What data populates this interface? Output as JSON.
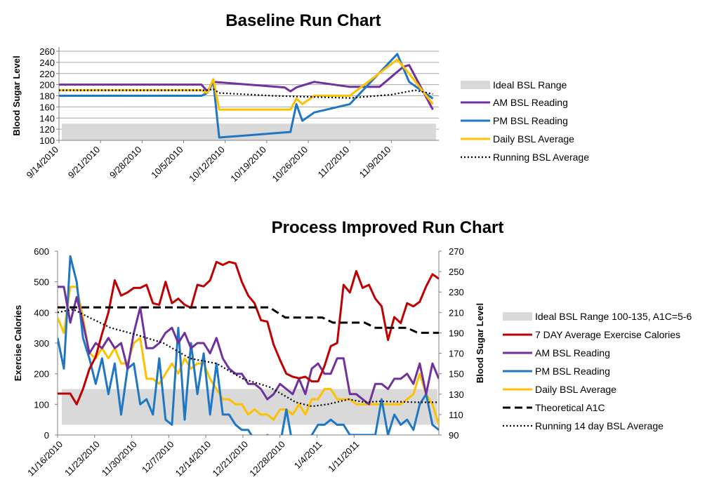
{
  "colors": {
    "ideal": "#d9d9d9",
    "am": "#7030a0",
    "pm": "#1f77c4",
    "daily": "#ffc000",
    "exercise": "#c00000",
    "running": "#000000",
    "a1c": "#000000",
    "grid": "#a6a6a6"
  },
  "chart_data": [
    {
      "type": "line",
      "title": "Baseline Run Chart",
      "ylabel": "Blood Sugar Level",
      "ylim": [
        100,
        260
      ],
      "yticks": [
        100,
        120,
        140,
        160,
        180,
        200,
        220,
        240,
        260
      ],
      "xlim": [
        "9/14/2010",
        "11/17/2010"
      ],
      "xticks": [
        "9/14/2010",
        "9/21/2010",
        "9/28/2010",
        "10/5/2010",
        "10/12/2010",
        "10/19/2010",
        "10/26/2010",
        "11/2/2010",
        "11/9/2010"
      ],
      "ideal_range": [
        100,
        130
      ],
      "legend": [
        "Ideal BSL Range",
        "AM BSL Reading",
        "PM BSL Reading",
        "Daily BSL Average",
        "Running BSL Average"
      ],
      "series": [
        {
          "name": "AM BSL Reading",
          "points": [
            [
              "9/14/2010",
              200
            ],
            [
              "10/8/2010",
              200
            ],
            [
              "10/9/2010",
              188
            ],
            [
              "10/10/2010",
              205
            ],
            [
              "10/22/2010",
              195
            ],
            [
              "10/23/2010",
              188
            ],
            [
              "10/24/2010",
              195
            ],
            [
              "10/27/2010",
              205
            ],
            [
              "11/2/2010",
              196
            ],
            [
              "11/7/2010",
              196
            ],
            [
              "11/11/2010",
              232
            ],
            [
              "11/12/2010",
              235
            ],
            [
              "11/16/2010",
              155
            ]
          ]
        },
        {
          "name": "PM BSL Reading",
          "points": [
            [
              "9/14/2010",
              180
            ],
            [
              "10/8/2010",
              180
            ],
            [
              "10/9/2010",
              185
            ],
            [
              "10/10/2010",
              205
            ],
            [
              "10/11/2010",
              105
            ],
            [
              "10/23/2010",
              115
            ],
            [
              "10/24/2010",
              165
            ],
            [
              "10/25/2010",
              135
            ],
            [
              "10/27/2010",
              150
            ],
            [
              "11/2/2010",
              165
            ],
            [
              "11/10/2010",
              255
            ],
            [
              "11/12/2010",
              205
            ],
            [
              "11/16/2010",
              175
            ]
          ]
        },
        {
          "name": "Daily BSL Average",
          "points": [
            [
              "9/14/2010",
              190
            ],
            [
              "10/8/2010",
              190
            ],
            [
              "10/9/2010",
              185
            ],
            [
              "10/10/2010",
              210
            ],
            [
              "10/11/2010",
              155
            ],
            [
              "10/23/2010",
              155
            ],
            [
              "10/24/2010",
              175
            ],
            [
              "10/25/2010",
              165
            ],
            [
              "10/27/2010",
              180
            ],
            [
              "11/2/2010",
              180
            ],
            [
              "11/10/2010",
              245
            ],
            [
              "11/12/2010",
              220
            ],
            [
              "11/16/2010",
              165
            ]
          ]
        },
        {
          "name": "Running BSL Average",
          "points": [
            [
              "9/14/2010",
              190
            ],
            [
              "10/9/2010",
              190
            ],
            [
              "10/10/2010",
              192
            ],
            [
              "10/11/2010",
              185
            ],
            [
              "10/20/2010",
              180
            ],
            [
              "11/2/2010",
              176
            ],
            [
              "11/9/2010",
              182
            ],
            [
              "11/13/2010",
              190
            ],
            [
              "11/16/2010",
              183
            ]
          ]
        }
      ]
    },
    {
      "type": "line",
      "title": "Process Improved Run Chart",
      "ylabel_left": "Exercise Calories",
      "ylabel_right": "Blood Sugar Level",
      "ylim_left": [
        0,
        600
      ],
      "yticks_left": [
        0,
        100,
        200,
        300,
        400,
        500,
        600
      ],
      "ylim_right": [
        90,
        270
      ],
      "yticks_right": [
        90,
        110,
        130,
        150,
        170,
        190,
        210,
        230,
        250,
        270
      ],
      "xlim": [
        "11/16/2010",
        "1/15/2011"
      ],
      "xticks": [
        "11/16/2010",
        "11/23/2010",
        "11/30/2010",
        "12/7/2010",
        "12/14/2010",
        "12/21/2010",
        "12/28/2010",
        "1/4/2011",
        "1/11/2011"
      ],
      "ideal_range": [
        100,
        135
      ],
      "legend": [
        "Ideal BSL Range 100-135, A1C=5-6",
        "7 DAY Average Exercise Calories",
        "AM BSL Reading",
        "PM BSL Reading",
        "Daily BSL Average",
        "Theoretical A1C",
        "Running 14 day BSL  Average"
      ],
      "series": [
        {
          "name": "7 DAY Average Exercise Calories",
          "axis": "left",
          "values": [
            135,
            135,
            135,
            100,
            150,
            215,
            255,
            330,
            400,
            505,
            455,
            465,
            480,
            480,
            490,
            430,
            425,
            500,
            430,
            445,
            425,
            415,
            490,
            485,
            505,
            565,
            555,
            565,
            560,
            500,
            455,
            430,
            375,
            370,
            295,
            245,
            200,
            190,
            185,
            190,
            175,
            175,
            225,
            290,
            300,
            490,
            465,
            535,
            480,
            490,
            445,
            420,
            310,
            385,
            365,
            430,
            420,
            435,
            485,
            525,
            510
          ]
        },
        {
          "name": "AM BSL Reading",
          "axis": "right",
          "values": [
            235,
            235,
            200,
            225,
            200,
            170,
            180,
            175,
            185,
            175,
            180,
            155,
            190,
            215,
            175,
            175,
            180,
            190,
            195,
            180,
            190,
            175,
            180,
            180,
            170,
            185,
            165,
            155,
            150,
            150,
            140,
            140,
            135,
            125,
            130,
            140,
            135,
            130,
            145,
            130,
            155,
            160,
            150,
            150,
            165,
            165,
            130,
            130,
            125,
            120,
            140,
            140,
            135,
            145,
            145,
            150,
            140,
            160,
            130,
            160,
            145
          ]
        },
        {
          "name": "PM BSL Reading",
          "axis": "right",
          "values": [
            185,
            155,
            265,
            240,
            185,
            165,
            140,
            165,
            130,
            160,
            110,
            155,
            160,
            120,
            125,
            110,
            165,
            105,
            100,
            195,
            105,
            180,
            130,
            170,
            110,
            160,
            110,
            110,
            100,
            95,
            95,
            85,
            80,
            90,
            85,
            80,
            115,
            80,
            80,
            85,
            90,
            100,
            100,
            105,
            100,
            100,
            90,
            90,
            90,
            90,
            90,
            125,
            90,
            110,
            100,
            105,
            95,
            120,
            130,
            100,
            95
          ]
        },
        {
          "name": "Daily BSL Average",
          "axis": "right",
          "values": [
            205,
            190,
            235,
            235,
            205,
            170,
            165,
            175,
            165,
            175,
            160,
            160,
            180,
            185,
            145,
            145,
            140,
            150,
            160,
            150,
            165,
            155,
            160,
            160,
            145,
            135,
            125,
            125,
            120,
            120,
            110,
            115,
            110,
            110,
            105,
            115,
            115,
            110,
            120,
            110,
            125,
            125,
            135,
            135,
            125,
            125,
            125,
            120,
            120,
            120,
            120,
            120,
            120,
            120,
            120,
            125,
            130,
            150,
            130,
            120,
            100
          ]
        },
        {
          "name": "Theoretical A1C",
          "axis": "right",
          "values": [
            [
              0,
              215
            ],
            [
              40,
              215
            ],
            [
              43,
              205
            ],
            [
              50,
              205
            ],
            [
              52,
              200
            ],
            [
              58,
              200
            ],
            [
              60,
              195
            ],
            [
              66,
              195
            ],
            [
              68,
              190
            ],
            [
              72,
              190
            ]
          ]
        },
        {
          "name": "Running 14 day BSL  Average",
          "axis": "right",
          "values": [
            [
              0,
              210
            ],
            [
              3,
              213
            ],
            [
              6,
              205
            ],
            [
              10,
              195
            ],
            [
              15,
              188
            ],
            [
              20,
              180
            ],
            [
              25,
              165
            ],
            [
              30,
              160
            ],
            [
              35,
              145
            ],
            [
              40,
              137
            ],
            [
              45,
              122
            ],
            [
              48,
              118
            ],
            [
              51,
              120
            ],
            [
              55,
              125
            ],
            [
              58,
              122
            ],
            [
              61,
              123
            ],
            [
              68,
              122
            ],
            [
              72,
              122
            ]
          ]
        }
      ]
    }
  ]
}
